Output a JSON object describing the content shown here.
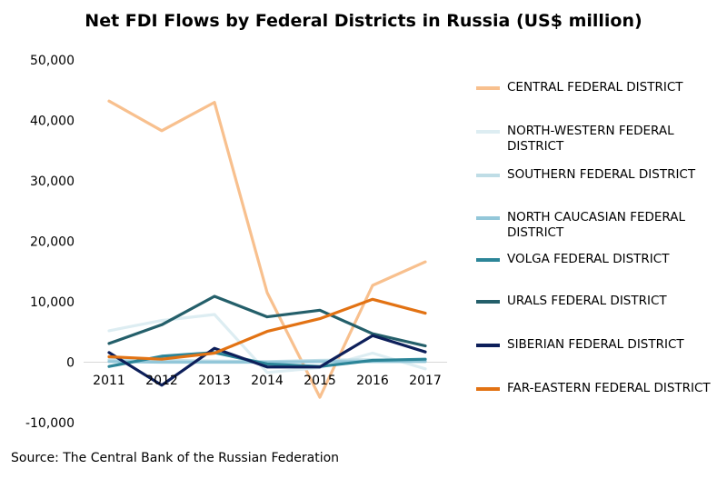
{
  "chart_data": {
    "type": "line",
    "title": "Net FDI Flows by Federal Districts in Russia (US$ million)",
    "xlabel": "",
    "ylabel": "",
    "x": [
      "2011",
      "2012",
      "2013",
      "2014",
      "2015",
      "2016",
      "2017"
    ],
    "ylim": [
      -10000,
      50000
    ],
    "yticks": [
      -10000,
      0,
      10000,
      20000,
      30000,
      40000,
      50000
    ],
    "ytick_labels": [
      "-10,000",
      "0",
      "10,000",
      "20,000",
      "30,000",
      "40,000",
      "50,000"
    ],
    "grid": false,
    "legend_position": "right",
    "series": [
      {
        "name": "CENTRAL FEDERAL DISTRICT",
        "color": "#F8C08E",
        "values": [
          43200,
          38300,
          43000,
          11500,
          -5800,
          12700,
          16600
        ]
      },
      {
        "name": "NORTH-WESTERN FEDERAL DISTRICT",
        "color": "#DDEDF2",
        "values": [
          5200,
          6900,
          7900,
          -1700,
          -900,
          1500,
          -1100
        ]
      },
      {
        "name": "SOUTHERN FEDERAL DISTRICT",
        "color": "#BFDDE6",
        "values": [
          400,
          300,
          200,
          100,
          300,
          400,
          300
        ]
      },
      {
        "name": "NORTH CAUCASIAN FEDERAL DISTRICT",
        "color": "#93C7D9",
        "values": [
          100,
          0,
          0,
          0,
          100,
          100,
          100
        ]
      },
      {
        "name": "VOLGA FEDERAL DISTRICT",
        "color": "#2C8598",
        "values": [
          -700,
          1000,
          1600,
          -300,
          -700,
          300,
          500
        ]
      },
      {
        "name": "URALS FEDERAL DISTRICT",
        "color": "#245F6A",
        "values": [
          3100,
          6200,
          10900,
          7500,
          8600,
          4700,
          2700
        ]
      },
      {
        "name": "SIBERIAN FEDERAL DISTRICT",
        "color": "#0D1F5A",
        "values": [
          1600,
          -3800,
          2300,
          -800,
          -800,
          4400,
          1700
        ]
      },
      {
        "name": "FAR-EASTERN FEDERAL DISTRICT",
        "color": "#E27213",
        "values": [
          900,
          500,
          1500,
          5100,
          7200,
          10400,
          8100
        ]
      }
    ]
  },
  "source": "Source: The Central Bank of the Russian Federation"
}
